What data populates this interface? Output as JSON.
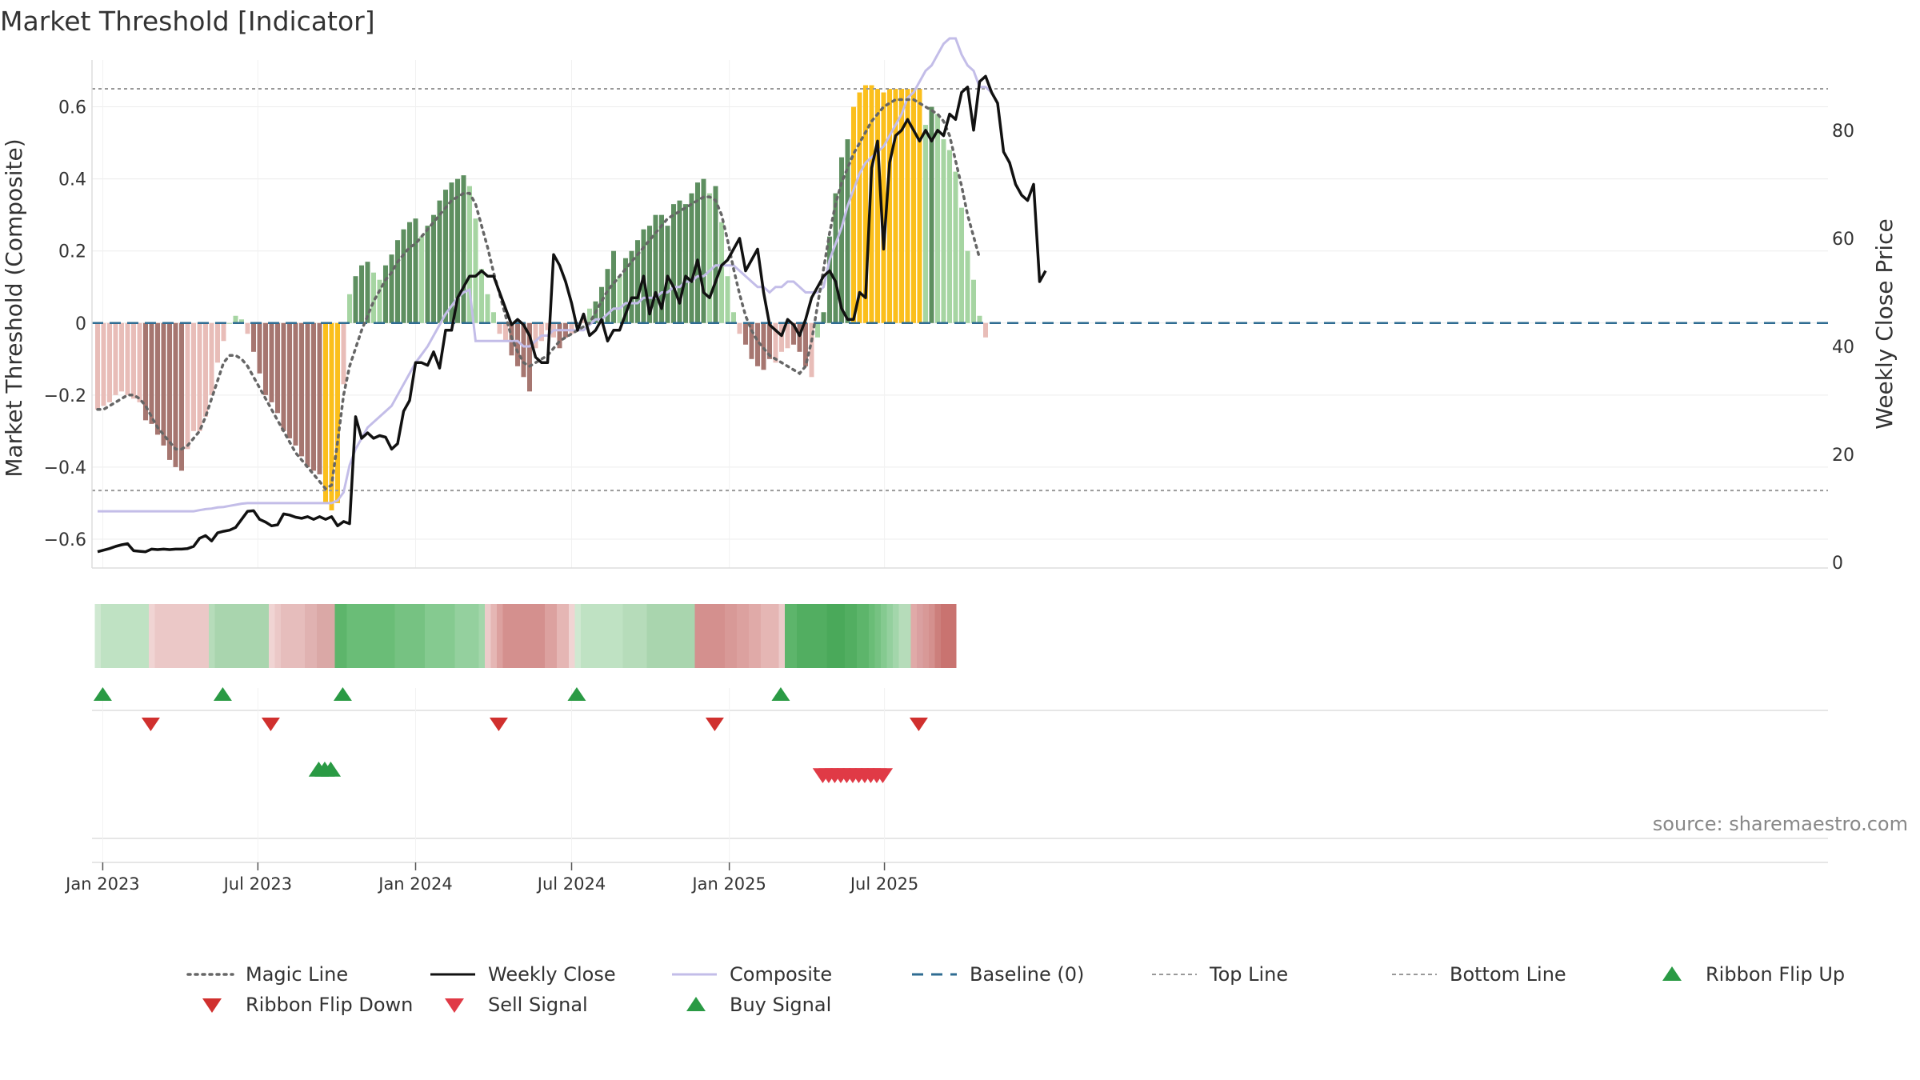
{
  "chart_data": {
    "type": "bar",
    "title": "Market Threshold [Indicator]",
    "ylabel": "Market Threshold (Composite)",
    "y2label": "Weekly Close Price",
    "ylim": [
      -0.68,
      0.73
    ],
    "y2lim": [
      -1,
      93
    ],
    "yticks": [
      "0.6",
      "0.4",
      "0.2",
      "0",
      "−0.2",
      "−0.4",
      "−0.6"
    ],
    "yticks_values": [
      0.6,
      0.4,
      0.2,
      0,
      -0.2,
      -0.4,
      -0.6
    ],
    "y2ticks": [
      "80",
      "60",
      "40",
      "20",
      "0"
    ],
    "y2ticks_values": [
      80,
      60,
      40,
      20,
      0
    ],
    "x_start": "2022-12-26",
    "x_step_weeks": 1,
    "xticks": [
      {
        "label": "Jan 2023",
        "date": "2023-01-01"
      },
      {
        "label": "Jul 2023",
        "date": "2023-07-01"
      },
      {
        "label": "Jan 2024",
        "date": "2024-01-01"
      },
      {
        "label": "Jul 2024",
        "date": "2024-07-01"
      },
      {
        "label": "Jan 2025",
        "date": "2025-01-01"
      },
      {
        "label": "Jul 2025",
        "date": "2025-07-01"
      }
    ],
    "top_line": 0.65,
    "bottom_line": -0.465,
    "composite": [
      -0.24,
      -0.23,
      -0.22,
      -0.2,
      -0.19,
      -0.2,
      -0.21,
      -0.22,
      -0.27,
      -0.28,
      -0.31,
      -0.34,
      -0.38,
      -0.4,
      -0.41,
      -0.35,
      -0.3,
      -0.3,
      -0.26,
      -0.2,
      -0.11,
      -0.05,
      0,
      0.02,
      0.01,
      -0.03,
      -0.08,
      -0.14,
      -0.2,
      -0.22,
      -0.25,
      -0.3,
      -0.32,
      -0.34,
      -0.37,
      -0.4,
      -0.41,
      -0.42,
      -0.5,
      -0.52,
      -0.5,
      -0.17,
      0.08,
      0.13,
      0.16,
      0.17,
      0.14,
      0.12,
      0.16,
      0.19,
      0.23,
      0.26,
      0.28,
      0.29,
      0.24,
      0.27,
      0.3,
      0.34,
      0.37,
      0.39,
      0.4,
      0.41,
      0.38,
      0.29,
      0.15,
      0.08,
      0.03,
      -0.03,
      -0.05,
      -0.09,
      -0.12,
      -0.15,
      -0.19,
      -0.07,
      -0.05,
      -0.02,
      -0.04,
      -0.07,
      -0.04,
      -0.03,
      -0.01,
      0.02,
      0.04,
      0.06,
      0.1,
      0.15,
      0.2,
      0.13,
      0.18,
      0.2,
      0.23,
      0.26,
      0.27,
      0.3,
      0.3,
      0.27,
      0.33,
      0.34,
      0.33,
      0.36,
      0.39,
      0.4,
      0.36,
      0.38,
      0.28,
      0.13,
      0.03,
      -0.03,
      -0.06,
      -0.1,
      -0.12,
      -0.13,
      -0.1,
      -0.11,
      -0.08,
      -0.07,
      -0.06,
      -0.08,
      -0.12,
      -0.15,
      -0.04,
      0.03,
      0.24,
      0.36,
      0.46,
      0.51,
      0.6,
      0.64,
      0.66,
      0.66,
      0.65,
      0.64,
      0.65,
      0.65,
      0.65,
      0.65,
      0.65,
      0.65,
      0.55,
      0.6,
      0.58,
      0.51,
      0.48,
      0.42,
      0.32,
      0.2,
      0.12,
      0.02,
      -0.04
    ],
    "bar_categories": [
      "pink",
      "pink",
      "pink",
      "pink",
      "pink",
      "pink",
      "pink",
      "pink",
      "pinkdark",
      "pinkdark",
      "pinkdark",
      "pinkdark",
      "pinkdark",
      "pinkdark",
      "pinkdark",
      "pink",
      "pink",
      "pink",
      "pink",
      "pink",
      "pink",
      "pink",
      "light",
      "light",
      "light",
      "pink",
      "pinkdark",
      "pinkdark",
      "pinkdark",
      "pinkdark",
      "pinkdark",
      "pinkdark",
      "pinkdark",
      "pinkdark",
      "pinkdark",
      "pinkdark",
      "pinkdark",
      "pinkdark",
      "yellow",
      "yellow",
      "yellow",
      "pink",
      "light",
      "dark",
      "dark",
      "dark",
      "light",
      "light",
      "dark",
      "dark",
      "dark",
      "dark",
      "dark",
      "dark",
      "light",
      "dark",
      "dark",
      "dark",
      "dark",
      "dark",
      "dark",
      "dark",
      "light",
      "light",
      "light",
      "light",
      "light",
      "pink",
      "pink",
      "pinkdark",
      "pinkdark",
      "pinkdark",
      "pinkdark",
      "pink",
      "pink",
      "pink",
      "pink",
      "pinkdark",
      "pinkdark",
      "pink",
      "pink",
      "pink",
      "light",
      "dark",
      "dark",
      "dark",
      "dark",
      "light",
      "dark",
      "dark",
      "dark",
      "dark",
      "dark",
      "dark",
      "dark",
      "dark",
      "dark",
      "dark",
      "dark",
      "dark",
      "dark",
      "dark",
      "light",
      "dark",
      "light",
      "light",
      "light",
      "pink",
      "pinkdark",
      "pinkdark",
      "pinkdark",
      "pinkdark",
      "pinkdark",
      "pink",
      "pink",
      "pink",
      "pinkdark",
      "pinkdark",
      "pinkdark",
      "pink",
      "light",
      "dark",
      "dark",
      "dark",
      "dark",
      "dark",
      "yellow",
      "yellow",
      "yellow",
      "yellow",
      "yellow",
      "yellow",
      "yellow",
      "yellow",
      "yellow",
      "yellow",
      "yellow",
      "yellow",
      "light",
      "dark",
      "light",
      "light",
      "light",
      "light",
      "light",
      "light",
      "light",
      "light",
      "pink"
    ],
    "magic_line": [
      -0.24,
      -0.24,
      -0.23,
      -0.22,
      -0.21,
      -0.2,
      -0.2,
      -0.21,
      -0.23,
      -0.26,
      -0.29,
      -0.31,
      -0.33,
      -0.35,
      -0.35,
      -0.34,
      -0.32,
      -0.3,
      -0.26,
      -0.21,
      -0.16,
      -0.11,
      -0.09,
      -0.09,
      -0.1,
      -0.12,
      -0.15,
      -0.18,
      -0.21,
      -0.24,
      -0.27,
      -0.3,
      -0.33,
      -0.36,
      -0.38,
      -0.4,
      -0.42,
      -0.44,
      -0.46,
      -0.45,
      -0.33,
      -0.2,
      -0.12,
      -0.07,
      -0.02,
      0.02,
      0.06,
      0.09,
      0.12,
      0.14,
      0.17,
      0.19,
      0.21,
      0.22,
      0.24,
      0.26,
      0.28,
      0.3,
      0.32,
      0.34,
      0.35,
      0.36,
      0.36,
      0.33,
      0.27,
      0.21,
      0.14,
      0.08,
      0.02,
      -0.04,
      -0.08,
      -0.11,
      -0.12,
      -0.11,
      -0.1,
      -0.09,
      -0.07,
      -0.05,
      -0.04,
      -0.03,
      -0.02,
      -0.01,
      0,
      0.03,
      0.06,
      0.09,
      0.11,
      0.13,
      0.15,
      0.17,
      0.19,
      0.21,
      0.23,
      0.25,
      0.27,
      0.29,
      0.3,
      0.31,
      0.32,
      0.33,
      0.34,
      0.35,
      0.35,
      0.34,
      0.3,
      0.23,
      0.15,
      0.08,
      0.02,
      -0.02,
      -0.05,
      -0.07,
      -0.09,
      -0.1,
      -0.11,
      -0.12,
      -0.13,
      -0.14,
      -0.12,
      -0.05,
      0.05,
      0.15,
      0.25,
      0.33,
      0.39,
      0.43,
      0.47,
      0.5,
      0.53,
      0.56,
      0.58,
      0.6,
      0.61,
      0.62,
      0.62,
      0.62,
      0.62,
      0.61,
      0.6,
      0.59,
      0.58,
      0.56,
      0.52,
      0.45,
      0.38,
      0.3,
      0.24,
      0.18
    ],
    "weekly_close": [
      2,
      2.3,
      2.6,
      3,
      3.3,
      3.5,
      2.2,
      2.1,
      2,
      2.5,
      2.4,
      2.5,
      2.4,
      2.5,
      2.5,
      2.6,
      3,
      4.5,
      5,
      4,
      5.5,
      5.8,
      6,
      6.5,
      8,
      9.5,
      9.6,
      8,
      7.5,
      6.8,
      7,
      9,
      8.8,
      8.4,
      8.2,
      8.5,
      8,
      8.5,
      8,
      8.5,
      6.8,
      7.6,
      7.2,
      27,
      23,
      24,
      23,
      23.5,
      23.2,
      21,
      22,
      28,
      30,
      37,
      37,
      36.5,
      39,
      36,
      43,
      43,
      49,
      51,
      53,
      53,
      54,
      53,
      53,
      50,
      47,
      44,
      45,
      44,
      42,
      38,
      37,
      37,
      57,
      55,
      52,
      48,
      43,
      46,
      42,
      43,
      45,
      41,
      43,
      43,
      46,
      49,
      49,
      53,
      46,
      50,
      47,
      53,
      51,
      48,
      53,
      52,
      56,
      50,
      49,
      52,
      55,
      56,
      58,
      60,
      54,
      56,
      58,
      50,
      44,
      43,
      42,
      45,
      44,
      42,
      45,
      49,
      51,
      53,
      54,
      52,
      47,
      45,
      45,
      50,
      49,
      73,
      78,
      58,
      74,
      79,
      80,
      82,
      80,
      78,
      80,
      78,
      80,
      79,
      83,
      82,
      87,
      88,
      80,
      89,
      90,
      87,
      85,
      76,
      74,
      70,
      68,
      67,
      70,
      52,
      54
    ],
    "composite_avg": [
      9.5,
      9.5,
      9.5,
      9.5,
      9.5,
      9.5,
      9.5,
      9.5,
      9.5,
      9.5,
      9.5,
      9.5,
      9.5,
      9.5,
      9.5,
      9.5,
      9.5,
      9.7,
      9.9,
      10,
      10.2,
      10.3,
      10.5,
      10.7,
      10.9,
      11,
      11,
      11,
      11,
      11,
      11,
      11,
      11,
      11,
      11,
      11,
      11,
      11,
      11,
      11,
      11.5,
      13,
      18,
      21,
      23,
      25,
      26,
      27,
      28,
      29,
      31,
      33,
      35,
      37,
      38.5,
      40,
      42,
      44,
      46,
      47.5,
      49,
      50,
      50.5,
      41,
      41,
      41,
      41,
      41,
      41,
      41,
      41,
      40,
      40,
      41,
      42,
      42,
      43,
      43,
      43,
      43,
      43,
      43,
      44,
      45,
      45,
      46,
      47,
      47,
      48,
      48,
      48,
      49,
      49,
      49,
      50,
      50,
      51,
      51,
      52,
      52,
      53,
      53,
      54,
      55,
      55,
      55,
      55,
      54,
      53,
      52,
      51,
      51,
      50,
      51,
      51,
      52,
      52,
      51,
      50,
      50,
      50,
      51,
      56,
      59,
      62,
      66,
      69,
      72,
      74,
      75,
      76,
      77,
      79,
      81,
      83,
      86,
      87,
      89,
      91,
      92,
      94,
      96,
      97,
      97,
      94,
      92,
      91,
      88,
      88,
      87,
      85
    ],
    "ribbon_colors": [
      "#cfe8d1",
      "#bfe2c3",
      "#bfe2c3",
      "#bfe2c3",
      "#bfe2c3",
      "#bfe2c3",
      "#bfe2c3",
      "#bfe2c3",
      "#bfe2c3",
      "#f0d4d3",
      "#ebc8c7",
      "#ebc8c7",
      "#ebc8c7",
      "#ebc8c7",
      "#ebc8c7",
      "#ebc8c7",
      "#ebc8c7",
      "#ebc8c7",
      "#ebc8c7",
      "#b6dcba",
      "#a9d5ae",
      "#a9d5ae",
      "#a9d5ae",
      "#a9d5ae",
      "#a9d5ae",
      "#a9d5ae",
      "#a9d5ae",
      "#a9d5ae",
      "#a9d5ae",
      "#f0d4d3",
      "#ebc8c7",
      "#e6bdbc",
      "#e6bdbc",
      "#e6bdbc",
      "#e6bdbc",
      "#e0b2b1",
      "#e0b2b1",
      "#daa8a6",
      "#daa8a6",
      "#daa8a6",
      "#5db56b",
      "#5db56b",
      "#6abd77",
      "#6abd77",
      "#6abd77",
      "#6abd77",
      "#6abd77",
      "#6abd77",
      "#6abd77",
      "#6abd77",
      "#76c282",
      "#76c282",
      "#76c282",
      "#76c282",
      "#76c282",
      "#85ca90",
      "#85ca90",
      "#85ca90",
      "#85ca90",
      "#85ca90",
      "#94d09e",
      "#94d09e",
      "#94d09e",
      "#94d09e",
      "#a3d6ab",
      "#eccbca",
      "#e5b6b4",
      "#dca19f",
      "#d4908e",
      "#d4908e",
      "#d4908e",
      "#d4908e",
      "#d4908e",
      "#d4908e",
      "#d4908e",
      "#dca19f",
      "#dca19f",
      "#e5b6b4",
      "#e5b6b4",
      "#f0d4d3",
      "#cfe8d1",
      "#bfe2c3",
      "#bfe2c3",
      "#bfe2c3",
      "#bfe2c3",
      "#bfe2c3",
      "#bfe2c3",
      "#bfe2c3",
      "#b6dcba",
      "#b6dcba",
      "#b6dcba",
      "#b6dcba",
      "#a9d5ae",
      "#a9d5ae",
      "#a9d5ae",
      "#a9d5ae",
      "#a9d5ae",
      "#a9d5ae",
      "#a9d5ae",
      "#a9d5ae",
      "#d4908e",
      "#d4908e",
      "#d4908e",
      "#d4908e",
      "#d4908e",
      "#d89997",
      "#d89997",
      "#dca19f",
      "#dca19f",
      "#e0aaa8",
      "#e0aaa8",
      "#e5b6b4",
      "#e5b6b4",
      "#e5b6b4",
      "#eccbca",
      "#5db56b",
      "#5db56b",
      "#52ae61",
      "#52ae61",
      "#52ae61",
      "#52ae61",
      "#52ae61",
      "#4aa95a",
      "#4aa95a",
      "#4aa95a",
      "#52ae61",
      "#52ae61",
      "#5db56b",
      "#5db56b",
      "#6abd77",
      "#76c282",
      "#85ca90",
      "#94d09e",
      "#a3d6ab",
      "#b6dcba",
      "#b6dcba",
      "#e0aaa8",
      "#daa0a0",
      "#d89997",
      "#d4908e",
      "#cc7f7c",
      "#c97370",
      "#c97370"
    ],
    "ribbon_flip_up": [
      "2023-01-01",
      "2023-05-21",
      "2023-10-08",
      "2024-07-07",
      "2025-03-02"
    ],
    "ribbon_flip_down": [
      "2023-02-26",
      "2023-07-16",
      "2024-04-07",
      "2024-12-15",
      "2025-08-10"
    ],
    "buy_signals": [
      "2023-09-10",
      "2023-09-17",
      "2023-09-24"
    ],
    "sell_signals": [
      "2025-04-20",
      "2025-04-27",
      "2025-05-04",
      "2025-05-11",
      "2025-05-18",
      "2025-05-25",
      "2025-06-01",
      "2025-06-08",
      "2025-06-15",
      "2025-06-22",
      "2025-06-29"
    ],
    "legend": [
      {
        "label": "Magic Line",
        "type": "dotted",
        "color": "#666666"
      },
      {
        "label": "Weekly Close",
        "type": "solid",
        "color": "#111111"
      },
      {
        "label": "Composite",
        "type": "solid",
        "color": "#c3bde8"
      },
      {
        "label": "Baseline (0)",
        "type": "dashed",
        "color": "#2f6c92"
      },
      {
        "label": "Top Line",
        "type": "dash-fine",
        "color": "#999999"
      },
      {
        "label": "Bottom Line",
        "type": "dash-fine",
        "color": "#999999"
      },
      {
        "label": "Ribbon Flip Up",
        "type": "triangle-up",
        "color": "#2a9a44"
      },
      {
        "label": "Ribbon Flip Down",
        "type": "triangle-down",
        "color": "#d0302e"
      },
      {
        "label": "Sell Signal",
        "type": "triangle-down",
        "color": "#e03a46"
      },
      {
        "label": "Buy Signal",
        "type": "triangle-up",
        "color": "#2a9a44"
      }
    ],
    "source": "source: sharemaestro.com",
    "colors": {
      "pink": "#e8bdb8",
      "pinkdark": "#a67670",
      "light": "#a6d5a2",
      "dark": "#5e8f60",
      "yellow": "#fbbf1c",
      "magic_line": "#666666",
      "weekly_close": "#111111",
      "composite": "#c3bde8",
      "baseline": "#2f6c92",
      "threshold": "#999999",
      "flip_up": "#2a9a44",
      "flip_down": "#d0302e",
      "sell": "#e03a46",
      "buy": "#2a9a44"
    }
  }
}
